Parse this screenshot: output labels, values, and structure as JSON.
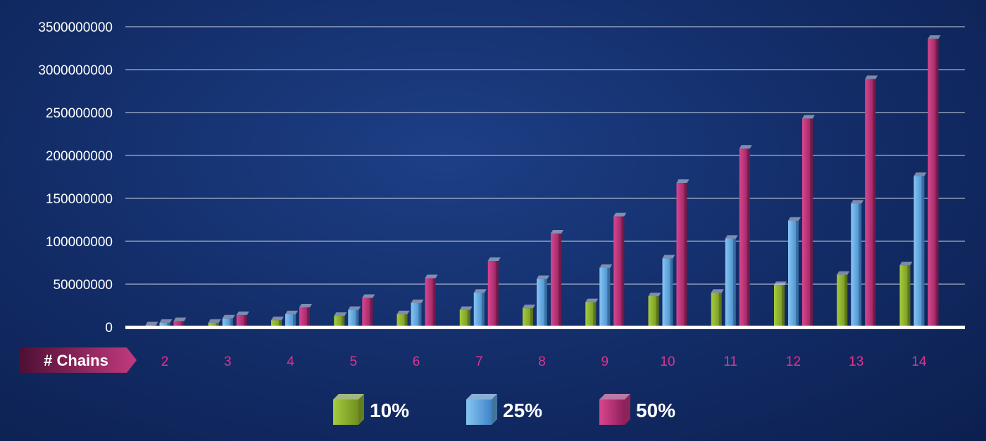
{
  "chart_data": {
    "type": "bar",
    "x_title": "# Chains",
    "categories": [
      "2",
      "3",
      "4",
      "5",
      "6",
      "7",
      "8",
      "9",
      "10",
      "11",
      "12",
      "13",
      "14"
    ],
    "y_ticks": [
      "3500000000",
      "3000000000",
      "250000000",
      "200000000",
      "150000000",
      "100000000",
      "50000000",
      "0"
    ],
    "ylim": [
      0,
      3500000000
    ],
    "grid": true,
    "legend_position": "bottom",
    "series": [
      {
        "name": "10%",
        "color": "#8fb52e",
        "values": [
          20000000,
          50000000,
          80000000,
          130000000,
          150000000,
          200000000,
          220000000,
          290000000,
          360000000,
          400000000,
          490000000,
          610000000,
          720000000
        ]
      },
      {
        "name": "25%",
        "color": "#5fa8e0",
        "values": [
          50000000,
          100000000,
          150000000,
          200000000,
          280000000,
          400000000,
          560000000,
          690000000,
          800000000,
          1030000000,
          1240000000,
          1440000000,
          1760000000
        ]
      },
      {
        "name": "50%",
        "color": "#c4357f",
        "values": [
          70000000,
          140000000,
          230000000,
          340000000,
          570000000,
          770000000,
          1090000000,
          1290000000,
          1680000000,
          2080000000,
          2430000000,
          2890000000,
          3360000000
        ]
      }
    ]
  }
}
